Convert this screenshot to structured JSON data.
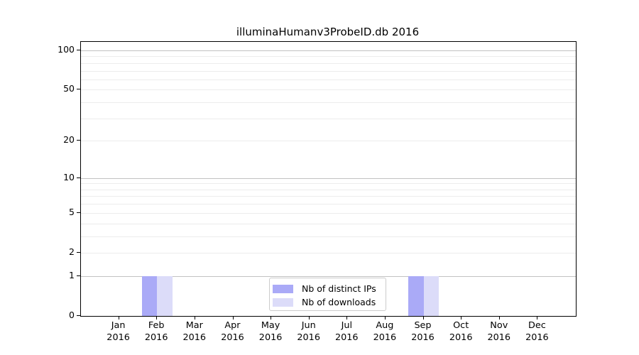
{
  "title": "illuminaHumanv3ProbeID.db 2016",
  "colors": {
    "distinct_ips_bar": "#aaaaf7",
    "downloads_bar": "#dcdcf9",
    "grid_major": "#c2c2c2",
    "grid_minor": "#ececec",
    "axis": "#000000",
    "legend_border": "#cccccc"
  },
  "chart_data": {
    "type": "bar",
    "title": "illuminaHumanv3ProbeID.db 2016",
    "xlabel": "",
    "ylabel": "",
    "categories": [
      "Jan 2016",
      "Feb 2016",
      "Mar 2016",
      "Apr 2016",
      "May 2016",
      "Jun 2016",
      "Jul 2016",
      "Aug 2016",
      "Sep 2016",
      "Oct 2016",
      "Nov 2016",
      "Dec 2016"
    ],
    "series": [
      {
        "name": "Nb of distinct IPs",
        "key": "distinct-ips",
        "color": "#aaaaf7",
        "values": [
          0,
          1,
          0,
          0,
          0,
          0,
          0,
          0,
          1,
          0,
          0,
          0
        ]
      },
      {
        "name": "Nb of downloads",
        "key": "downloads",
        "color": "#dcdcf9",
        "values": [
          0,
          1,
          0,
          0,
          0,
          0,
          0,
          0,
          1,
          0,
          0,
          0
        ]
      }
    ],
    "yscale": "log1p",
    "ylim": [
      0,
      116
    ],
    "yticks": [
      0,
      1,
      2,
      5,
      10,
      20,
      50,
      100
    ],
    "grid_values": [
      1,
      2,
      3,
      4,
      5,
      6,
      7,
      8,
      9,
      10,
      20,
      30,
      40,
      50,
      60,
      70,
      80,
      90,
      100
    ],
    "grid_major_values": [
      1,
      10,
      100
    ],
    "grid": true,
    "legend_position": "lower center"
  }
}
